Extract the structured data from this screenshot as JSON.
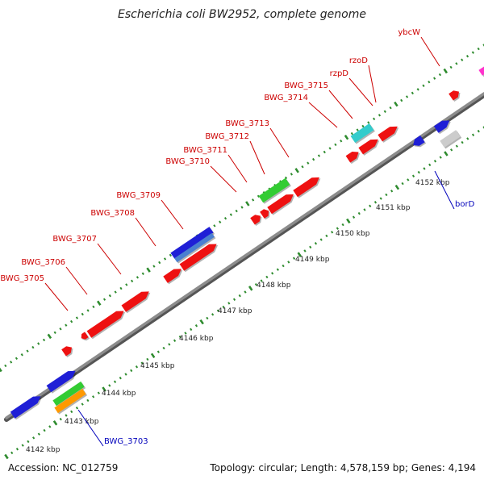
{
  "title": "Escherichia coli BW2952, complete genome",
  "footer": {
    "accession": "Accession: NC_012759",
    "summary": "Topology: circular; Length: 4,578,159 bp; Genes: 4,194"
  },
  "colors": {
    "backbone": "#8c8c8c",
    "tick": "#2e8b2e",
    "label_red": "#cc0000",
    "label_blue": "#0000bb",
    "gene_red": "#ee1111",
    "gene_blue": "#1f1fd6",
    "gene_blue_light": "#4a7fd0",
    "gene_green": "#33cc33",
    "gene_orange": "#ff9900",
    "gene_cyan": "#33cccc",
    "gene_gray": "#cccccc",
    "gene_magenta": "#ff33cc"
  },
  "kbp_labels": [
    "4142 kbp",
    "4143 kbp",
    "4144 kbp",
    "4145 kbp",
    "4146 kbp",
    "4147 kbp",
    "4148 kbp",
    "4149 kbp",
    "4150 kbp",
    "4151 kbp",
    "4152 kbp"
  ],
  "gene_labels": [
    "BWG_3703",
    "BWG_3705",
    "BWG_3706",
    "BWG_3707",
    "BWG_3708",
    "BWG_3709",
    "BWG_3710",
    "BWG_3711",
    "BWG_3712",
    "BWG_3713",
    "BWG_3714",
    "BWG_3715",
    "rzpD",
    "rzoD",
    "ybcW",
    "borD"
  ]
}
